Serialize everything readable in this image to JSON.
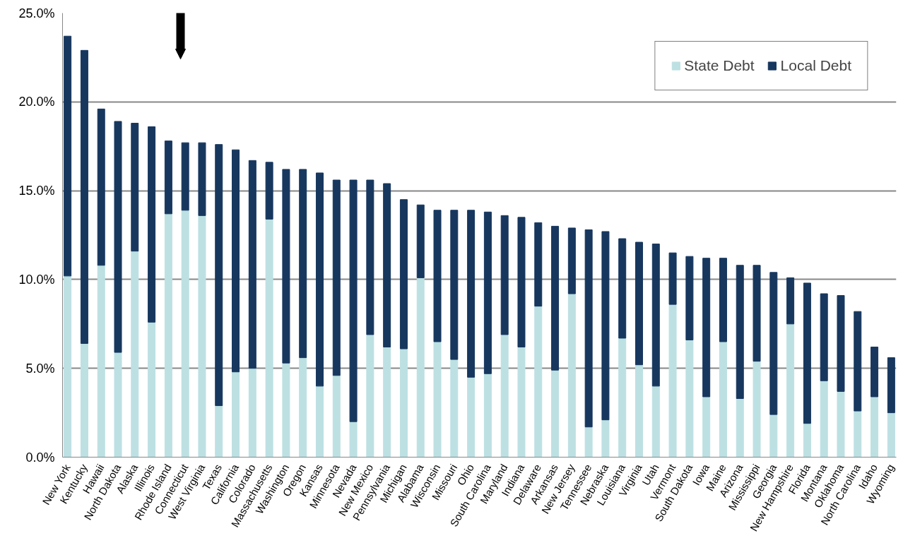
{
  "chart_data": {
    "type": "bar",
    "stacked": true,
    "categories": [
      "New York",
      "Kentucky",
      "Hawaii",
      "North Dakota",
      "Alaska",
      "Illinois",
      "Rhode Island",
      "Connecticut",
      "West Virginia",
      "Texas",
      "California",
      "Colorado",
      "Massachusetts",
      "Washington",
      "Oregon",
      "Kansas",
      "Minnesota",
      "Nevada",
      "New Mexico",
      "Pennsylvania",
      "Michigan",
      "Alabama",
      "Wisconsin",
      "Missouri",
      "Ohio",
      "South Carolina",
      "Maryland",
      "Indiana",
      "Delaware",
      "Arkansas",
      "New Jersey",
      "Tennessee",
      "Nebraska",
      "Louisiana",
      "Virginia",
      "Utah",
      "Vermont",
      "South Dakota",
      "Iowa",
      "Maine",
      "Arizona",
      "Mississippi",
      "Georgia",
      "New Hampshire",
      "Florida",
      "Montana",
      "Oklahoma",
      "North Carolina",
      "Idaho",
      "Wyoming"
    ],
    "series": [
      {
        "name": "State Debt",
        "color": "#bde0e3",
        "values": [
          10.2,
          6.4,
          10.8,
          5.9,
          11.6,
          7.6,
          13.7,
          13.9,
          13.6,
          2.9,
          4.8,
          5.0,
          13.4,
          5.3,
          5.6,
          4.0,
          4.6,
          2.0,
          6.9,
          6.2,
          6.1,
          10.1,
          6.5,
          5.5,
          4.5,
          4.7,
          6.9,
          6.2,
          8.5,
          4.9,
          9.2,
          1.7,
          2.1,
          6.7,
          5.2,
          4.0,
          8.6,
          6.6,
          3.4,
          6.5,
          3.3,
          5.4,
          2.4,
          7.5,
          1.9,
          4.3,
          3.7,
          2.6,
          3.4,
          2.5
        ]
      },
      {
        "name": "Local Debt",
        "color": "#17375e",
        "values": [
          13.5,
          16.5,
          8.8,
          13.0,
          7.2,
          11.0,
          4.1,
          3.8,
          4.1,
          14.7,
          12.5,
          11.7,
          3.2,
          10.9,
          10.6,
          12.0,
          11.0,
          13.6,
          8.7,
          9.2,
          8.4,
          4.1,
          7.4,
          8.4,
          9.4,
          9.1,
          6.7,
          7.3,
          4.7,
          8.1,
          3.7,
          11.1,
          10.6,
          5.6,
          6.9,
          8.0,
          2.9,
          4.7,
          7.8,
          4.7,
          7.5,
          5.4,
          8.0,
          2.6,
          7.9,
          4.9,
          5.4,
          5.6,
          2.8,
          3.1
        ]
      }
    ],
    "ylim": [
      0,
      25
    ],
    "yticks": [
      {
        "value": 0,
        "label": "0.0%"
      },
      {
        "value": 5,
        "label": "5.0%"
      },
      {
        "value": 10,
        "label": "10.0%"
      },
      {
        "value": 15,
        "label": "15.0%"
      },
      {
        "value": 20,
        "label": "20.0%"
      },
      {
        "value": 25,
        "label": "25.0%"
      }
    ],
    "grid": "y",
    "legend": "top right"
  }
}
